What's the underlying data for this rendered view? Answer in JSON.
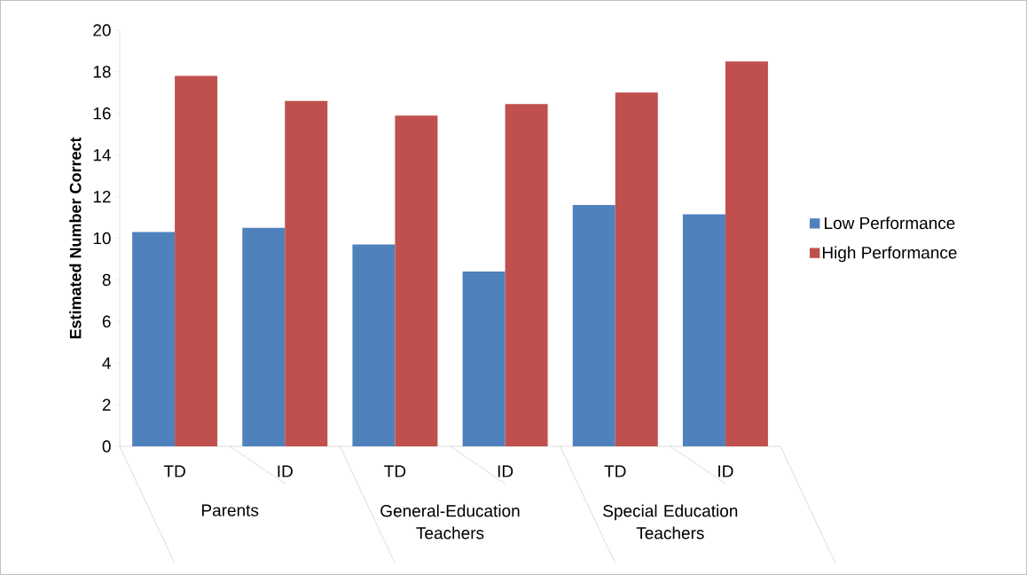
{
  "chart_data": {
    "type": "bar",
    "ylabel": "Estimated Number Correct",
    "categories": [
      "TD",
      "ID",
      "TD",
      "ID",
      "TD",
      "ID"
    ],
    "annotations": [
      "Parents",
      "General-Education Teachers",
      "Special Education Teachers"
    ],
    "series": [
      {
        "name": "Low Performance",
        "color": "#4f81bd",
        "values": [
          10.3,
          10.5,
          9.7,
          8.4,
          11.6,
          11.15
        ]
      },
      {
        "name": "High Performance",
        "color": "#c0504d",
        "values": [
          17.8,
          16.6,
          15.9,
          16.45,
          17.0,
          18.5
        ]
      }
    ],
    "ylim": [
      0,
      20
    ],
    "yticks": [
      0,
      2,
      4,
      6,
      8,
      10,
      12,
      14,
      16,
      18,
      20
    ],
    "legend": "right"
  }
}
